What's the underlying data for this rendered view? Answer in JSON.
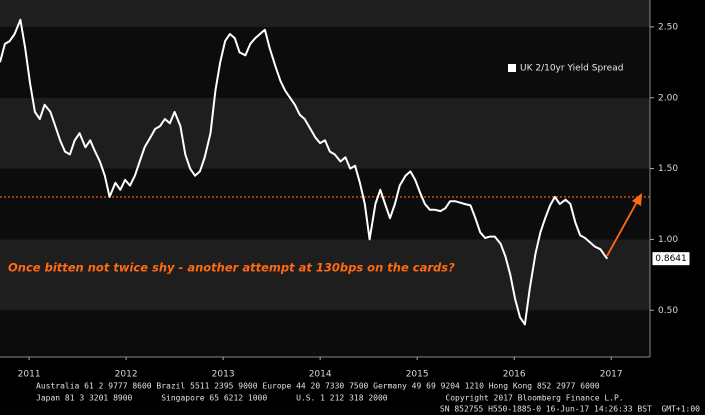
{
  "chart_data": {
    "type": "line",
    "x": [
      2011.2,
      2011.25,
      2011.3,
      2011.35,
      2011.41,
      2011.46,
      2011.51,
      2011.56,
      2011.61,
      2011.66,
      2011.72,
      2011.77,
      2011.82,
      2011.87,
      2011.92,
      2011.97,
      2012.02,
      2012.08,
      2012.13,
      2012.18,
      2012.23,
      2012.28,
      2012.33,
      2012.39,
      2012.44,
      2012.49,
      2012.54,
      2012.59,
      2012.64,
      2012.69,
      2012.75,
      2012.8,
      2012.85,
      2012.9,
      2012.95,
      2013.0,
      2013.06,
      2013.11,
      2013.16,
      2013.21,
      2013.26,
      2013.31,
      2013.37,
      2013.42,
      2013.47,
      2013.52,
      2013.57,
      2013.62,
      2013.67,
      2013.73,
      2013.78,
      2013.83,
      2013.88,
      2013.93,
      2013.98,
      2014.04,
      2014.09,
      2014.14,
      2014.19,
      2014.24,
      2014.29,
      2014.34,
      2014.4,
      2014.45,
      2014.5,
      2014.55,
      2014.6,
      2014.65,
      2014.71,
      2014.76,
      2014.81,
      2014.86,
      2014.91,
      2014.96,
      2015.01,
      2015.07,
      2015.12,
      2015.17,
      2015.22,
      2015.27,
      2015.32,
      2015.38,
      2015.43,
      2015.48,
      2015.53,
      2015.58,
      2015.63,
      2015.68,
      2015.74,
      2015.79,
      2015.84,
      2015.89,
      2015.94,
      2015.99,
      2016.05,
      2016.1,
      2016.15,
      2016.2,
      2016.25,
      2016.3,
      2016.36,
      2016.41,
      2016.46,
      2016.51,
      2016.56,
      2016.61,
      2016.66,
      2016.72,
      2016.77,
      2016.82,
      2016.87,
      2016.92,
      2016.97,
      2017.03,
      2017.08,
      2017.13,
      2017.18,
      2017.23,
      2017.28,
      2017.33,
      2017.39,
      2017.44,
      2017.46
    ],
    "series": [
      {
        "name": "UK 2/10yr Yield Spread",
        "color": "#ffffff",
        "values": [
          2.25,
          2.38,
          2.4,
          2.45,
          2.55,
          2.35,
          2.1,
          1.9,
          1.85,
          1.95,
          1.9,
          1.8,
          1.7,
          1.62,
          1.6,
          1.7,
          1.75,
          1.65,
          1.7,
          1.62,
          1.55,
          1.45,
          1.3,
          1.4,
          1.35,
          1.42,
          1.38,
          1.45,
          1.55,
          1.65,
          1.72,
          1.78,
          1.8,
          1.85,
          1.82,
          1.9,
          1.8,
          1.6,
          1.5,
          1.45,
          1.48,
          1.58,
          1.75,
          2.05,
          2.25,
          2.4,
          2.45,
          2.42,
          2.32,
          2.3,
          2.38,
          2.42,
          2.45,
          2.48,
          2.35,
          2.22,
          2.12,
          2.05,
          2.0,
          1.95,
          1.88,
          1.85,
          1.78,
          1.72,
          1.68,
          1.7,
          1.62,
          1.6,
          1.55,
          1.58,
          1.5,
          1.52,
          1.4,
          1.25,
          1.0,
          1.25,
          1.35,
          1.25,
          1.15,
          1.25,
          1.38,
          1.45,
          1.48,
          1.42,
          1.33,
          1.25,
          1.21,
          1.21,
          1.2,
          1.22,
          1.27,
          1.27,
          1.26,
          1.25,
          1.24,
          1.15,
          1.05,
          1.01,
          1.02,
          1.02,
          0.97,
          0.88,
          0.75,
          0.58,
          0.45,
          0.4,
          0.65,
          0.9,
          1.05,
          1.15,
          1.24,
          1.3,
          1.25,
          1.28,
          1.25,
          1.12,
          1.03,
          1.01,
          0.98,
          0.95,
          0.93,
          0.88,
          0.8641
        ]
      }
    ],
    "xlim": [
      2011.2,
      2017.9
    ],
    "ylim": [
      0.17,
      2.69
    ],
    "xticks": [
      {
        "value": 2011.5,
        "label": "2011"
      },
      {
        "value": 2012.5,
        "label": "2012"
      },
      {
        "value": 2013.5,
        "label": "2013"
      },
      {
        "value": 2014.5,
        "label": "2014"
      },
      {
        "value": 2015.5,
        "label": "2015"
      },
      {
        "value": 2016.5,
        "label": "2016"
      },
      {
        "value": 2017.5,
        "label": "2017"
      }
    ],
    "yticks": [
      {
        "value": 0.5,
        "label": "0.50"
      },
      {
        "value": 1.0,
        "label": "1.00"
      },
      {
        "value": 1.5,
        "label": "1.50"
      },
      {
        "value": 2.0,
        "label": "2.00"
      },
      {
        "value": 2.5,
        "label": "2.50"
      }
    ],
    "legend": "upper right",
    "hline": {
      "value": 1.3,
      "color": "#ff6a13"
    },
    "annotation": {
      "text": "Once bitten not twice shy - another attempt at 130bps on the cards?",
      "color": "#ff6a13"
    }
  },
  "footer": {
    "lines": [
      "Australia 61 2 9777 8600 Brazil 5511 2395 9000 Europe 44 20 7330 7500 Germany 49 69 9204 1210 Hong Kong 852 2977 6000",
      "Japan 81 3 3201 8900      Singapore 65 6212 1000      U.S. 1 212 318 2000            Copyright 2017 Bloomberg Finance L.P.",
      "SN 852755 H550-1885-0 16-Jun-17 14:26:33 BST  GMT+1:00"
    ]
  }
}
